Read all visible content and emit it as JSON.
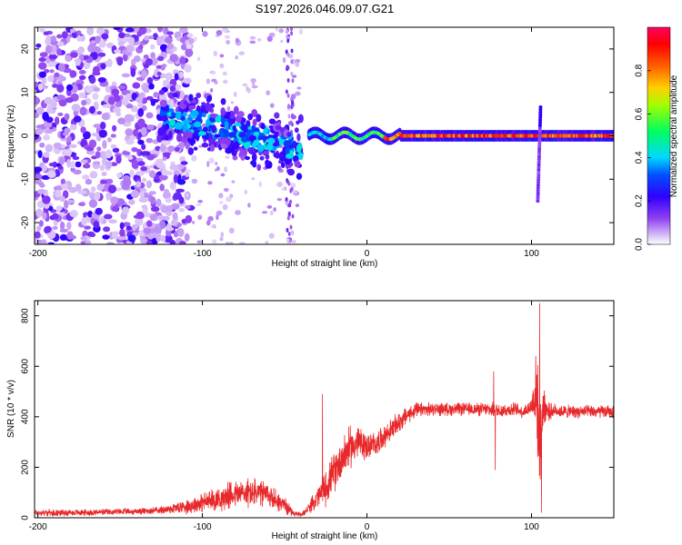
{
  "title": "S197.2026.046.09.07.G21",
  "chart_data": [
    {
      "type": "heatmap",
      "xlabel": "Height of straight line (km)",
      "ylabel": "Frequency (Hz)",
      "xlim": [
        -202,
        150
      ],
      "ylim": [
        -25,
        25
      ],
      "xticks": [
        -200,
        -100,
        0,
        100
      ],
      "yticks": [
        -20,
        -10,
        0,
        10,
        20
      ],
      "colorbar": {
        "label": "Normalized spectral amplitude",
        "range": [
          0,
          1
        ],
        "ticks": [
          "0.0",
          "0.2",
          "0.4",
          "0.6",
          "0.8"
        ],
        "colors": [
          "#ffffff",
          "#b070f0",
          "#4000ff",
          "#0040ff",
          "#00e0ff",
          "#00ff40",
          "#e0ff00",
          "#ff8000",
          "#ff0000",
          "#ff0060"
        ]
      },
      "features": {
        "carrier_band": {
          "x": [
            -35,
            150
          ],
          "freq": 0,
          "note": "strong stable carrier near 0 Hz"
        },
        "descending_trace": {
          "x": [
            -125,
            -40
          ],
          "freq": [
            5,
            -3
          ]
        },
        "noise_region": {
          "x": [
            -202,
            -100
          ]
        },
        "spike": {
          "x": 105,
          "freq": [
            -15,
            7
          ]
        }
      }
    },
    {
      "type": "line",
      "xlabel": "Height of straight line (km)",
      "ylabel": "SNR (10 * v/v)",
      "xlim": [
        -202,
        150
      ],
      "ylim": [
        0,
        860
      ],
      "xticks": [
        -200,
        -100,
        0,
        100
      ],
      "yticks": [
        0,
        200,
        400,
        600,
        800
      ],
      "color": "#e8282a",
      "series": [
        {
          "name": "SNR",
          "x": [
            -202,
            -180,
            -160,
            -140,
            -125,
            -110,
            -100,
            -90,
            -80,
            -70,
            -60,
            -50,
            -45,
            -40,
            -35,
            -30,
            -25,
            -20,
            -15,
            -10,
            -5,
            0,
            5,
            10,
            15,
            20,
            25,
            30,
            40,
            50,
            60,
            70,
            80,
            90,
            95,
            100,
            103,
            105,
            107,
            110,
            115,
            120,
            130,
            140,
            150
          ],
          "values": [
            20,
            20,
            22,
            25,
            30,
            45,
            60,
            75,
            95,
            100,
            90,
            50,
            20,
            10,
            40,
            80,
            120,
            180,
            240,
            280,
            300,
            280,
            290,
            320,
            350,
            380,
            410,
            425,
            430,
            430,
            430,
            430,
            425,
            430,
            420,
            440,
            520,
            250,
            450,
            420,
            425,
            420,
            420,
            420,
            420
          ],
          "noise": [
            15,
            15,
            15,
            15,
            18,
            35,
            45,
            55,
            65,
            70,
            60,
            40,
            15,
            10,
            25,
            55,
            80,
            90,
            100,
            95,
            80,
            60,
            60,
            50,
            50,
            50,
            40,
            35,
            30,
            30,
            30,
            30,
            35,
            30,
            30,
            40,
            250,
            180,
            120,
            40,
            30,
            30,
            30,
            30,
            30
          ],
          "peaks": [
            {
              "x": 105,
              "y": 850
            },
            {
              "x": 106,
              "y": 20
            },
            {
              "x": 78,
              "y": 190
            },
            {
              "x": 77,
              "y": 580
            },
            {
              "x": -27,
              "y": 490
            }
          ]
        }
      ]
    }
  ]
}
